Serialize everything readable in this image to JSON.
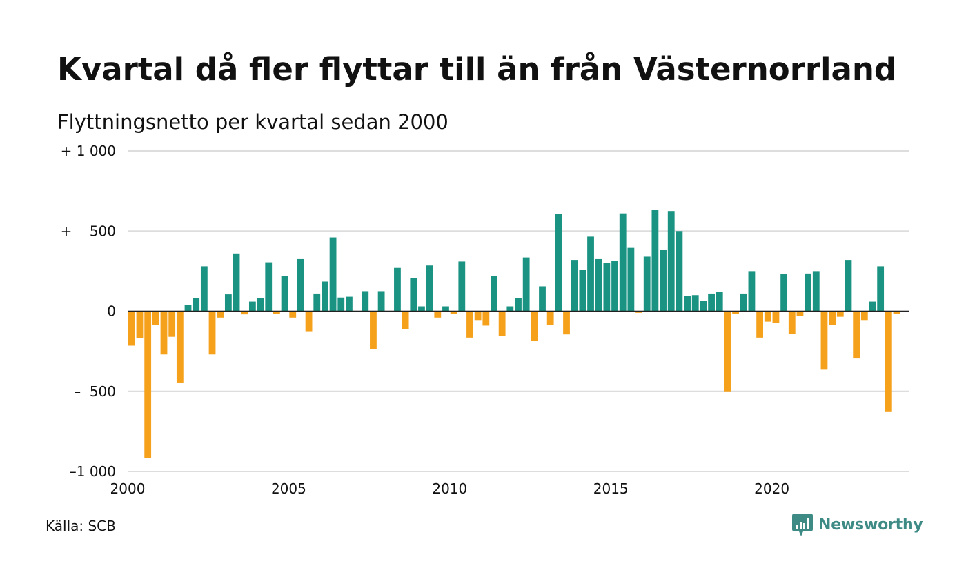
{
  "title": "Kvartal då fler flyttar till än från Västernorrland",
  "subtitle": "Flyttningsnetto per kvartal sedan 2000",
  "source": "Källa: SCB",
  "brand": "Newsworthy",
  "colors": {
    "positive": "#1a9383",
    "negative": "#f5a11c",
    "grid": "#dddddd",
    "zero_line": "#222222",
    "brand": "#3e8a85"
  },
  "chart_data": {
    "type": "bar",
    "xlabel": "",
    "ylabel": "",
    "ylim": [
      -1000,
      1000
    ],
    "xlim": [
      2000,
      2024.25
    ],
    "grid": true,
    "y_ticks": [
      {
        "value": 1000,
        "label": "+ 1 000"
      },
      {
        "value": 500,
        "label": "+    500"
      },
      {
        "value": 0,
        "label": "0"
      },
      {
        "value": -500,
        "label": "–  500"
      },
      {
        "value": -1000,
        "label": "–1 000"
      }
    ],
    "x_ticks": [
      {
        "value": 2000,
        "label": "2000"
      },
      {
        "value": 2005,
        "label": "2005"
      },
      {
        "value": 2010,
        "label": "2010"
      },
      {
        "value": 2015,
        "label": "2015"
      },
      {
        "value": 2020,
        "label": "2020"
      }
    ],
    "categories": [
      "2000K1",
      "2000K2",
      "2000K3",
      "2000K4",
      "2001K1",
      "2001K2",
      "2001K3",
      "2001K4",
      "2002K1",
      "2002K2",
      "2002K3",
      "2002K4",
      "2003K1",
      "2003K2",
      "2003K3",
      "2003K4",
      "2004K1",
      "2004K2",
      "2004K3",
      "2004K4",
      "2005K1",
      "2005K2",
      "2005K3",
      "2005K4",
      "2006K1",
      "2006K2",
      "2006K3",
      "2006K4",
      "2007K1",
      "2007K2",
      "2007K3",
      "2007K4",
      "2008K1",
      "2008K2",
      "2008K3",
      "2008K4",
      "2009K1",
      "2009K2",
      "2009K3",
      "2009K4",
      "2010K1",
      "2010K2",
      "2010K3",
      "2010K4",
      "2011K1",
      "2011K2",
      "2011K3",
      "2011K4",
      "2012K1",
      "2012K2",
      "2012K3",
      "2012K4",
      "2013K1",
      "2013K2",
      "2013K3",
      "2013K4",
      "2014K1",
      "2014K2",
      "2014K3",
      "2014K4",
      "2015K1",
      "2015K2",
      "2015K3",
      "2015K4",
      "2016K1",
      "2016K2",
      "2016K3",
      "2016K4",
      "2017K1",
      "2017K2",
      "2017K3",
      "2017K4",
      "2018K1",
      "2018K2",
      "2018K3",
      "2018K4",
      "2019K1",
      "2019K2",
      "2019K3",
      "2019K4",
      "2020K1",
      "2020K2",
      "2020K3",
      "2020K4",
      "2021K1",
      "2021K2",
      "2021K3",
      "2021K4",
      "2022K1",
      "2022K2",
      "2022K3",
      "2022K4",
      "2023K1",
      "2023K2",
      "2023K3",
      "2023K4",
      "2024K1"
    ],
    "values": [
      -215,
      -170,
      -915,
      -85,
      -270,
      -160,
      -445,
      40,
      80,
      280,
      -270,
      -40,
      105,
      360,
      -20,
      60,
      80,
      305,
      -15,
      220,
      -40,
      325,
      -125,
      110,
      185,
      460,
      85,
      90,
      0,
      125,
      -235,
      125,
      0,
      270,
      -110,
      205,
      30,
      285,
      -40,
      30,
      -15,
      310,
      -165,
      -55,
      -90,
      220,
      -155,
      30,
      80,
      335,
      -185,
      155,
      -85,
      605,
      -145,
      320,
      260,
      465,
      325,
      300,
      315,
      610,
      395,
      -10,
      340,
      630,
      385,
      625,
      500,
      95,
      100,
      65,
      110,
      120,
      -500,
      -15,
      110,
      250,
      -165,
      -65,
      -75,
      230,
      -140,
      -30,
      235,
      250,
      -365,
      -85,
      -35,
      320,
      -295,
      -55,
      60,
      280,
      -625,
      -15,
      0
    ]
  }
}
